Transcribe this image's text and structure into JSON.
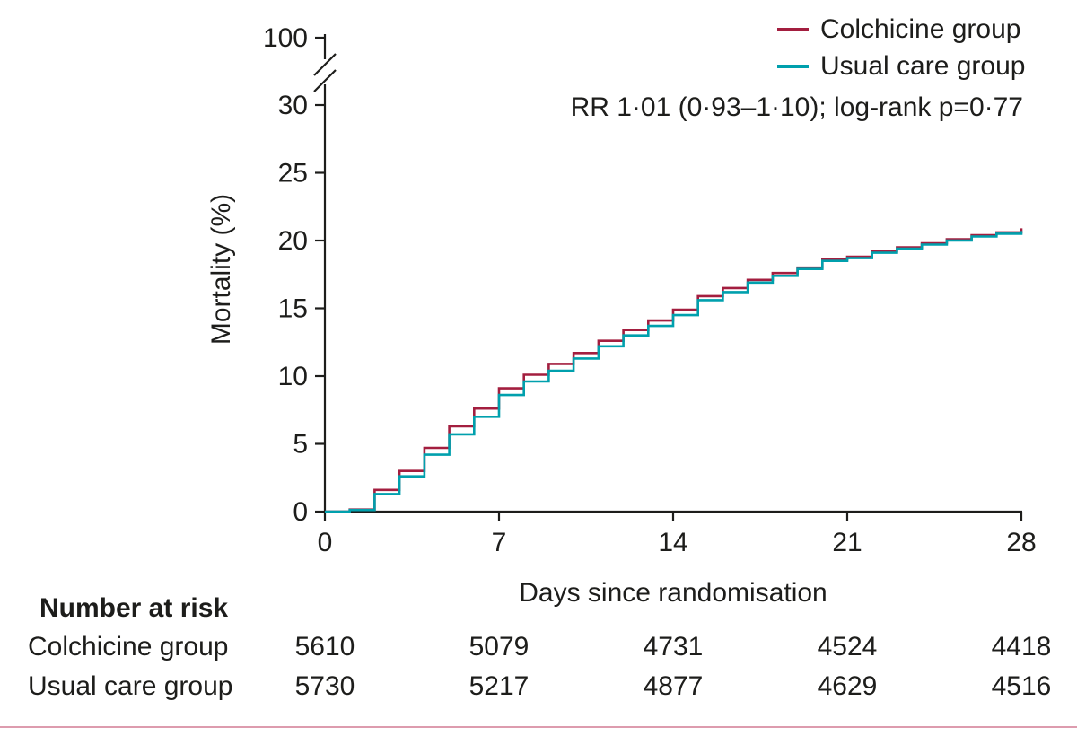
{
  "figure": {
    "background": "#ffffff",
    "text_color": "#1d1d1b",
    "bottom_rule_color": "#dd9cae"
  },
  "chart_data": {
    "type": "line",
    "style": "kaplan-meier-step",
    "title": "",
    "xlabel": "Days since randomisation",
    "ylabel": "Mortality (%)",
    "xlim": [
      0,
      28
    ],
    "x_ticks": [
      0,
      7,
      14,
      21,
      28
    ],
    "y_ticks": [
      0,
      5,
      10,
      15,
      20,
      25,
      30,
      100
    ],
    "y_axis_break_between": [
      30,
      100
    ],
    "grid": false,
    "legend_position": "top-right",
    "annotation": "RR 1·01 (0·93–1·10); log-rank p=0·77",
    "x_days": [
      0,
      1,
      2,
      3,
      4,
      5,
      6,
      7,
      8,
      9,
      10,
      11,
      12,
      13,
      14,
      15,
      16,
      17,
      18,
      19,
      20,
      21,
      22,
      23,
      24,
      25,
      26,
      27,
      28
    ],
    "series": [
      {
        "name": "Colchicine group",
        "color": "#a31e3f",
        "values": [
          0,
          0.15,
          1.6,
          3.0,
          4.7,
          6.3,
          7.6,
          9.1,
          10.1,
          10.9,
          11.7,
          12.6,
          13.4,
          14.1,
          14.9,
          15.9,
          16.5,
          17.1,
          17.6,
          18.0,
          18.6,
          18.8,
          19.2,
          19.5,
          19.8,
          20.1,
          20.4,
          20.6,
          20.9
        ]
      },
      {
        "name": "Usual care group",
        "color": "#00a0ad",
        "values": [
          0,
          0.12,
          1.3,
          2.6,
          4.2,
          5.7,
          7.0,
          8.6,
          9.6,
          10.4,
          11.3,
          12.2,
          13.0,
          13.7,
          14.5,
          15.6,
          16.2,
          16.9,
          17.4,
          17.9,
          18.5,
          18.7,
          19.1,
          19.4,
          19.7,
          20.0,
          20.3,
          20.5,
          20.7
        ]
      }
    ]
  },
  "risk_table": {
    "title": "Number at risk",
    "days": [
      0,
      7,
      14,
      21,
      28
    ],
    "rows": [
      {
        "label": "Colchicine group",
        "values": [
          "5610",
          "5079",
          "4731",
          "4524",
          "4418"
        ]
      },
      {
        "label": "Usual care group",
        "values": [
          "5730",
          "5217",
          "4877",
          "4629",
          "4516"
        ]
      }
    ]
  }
}
